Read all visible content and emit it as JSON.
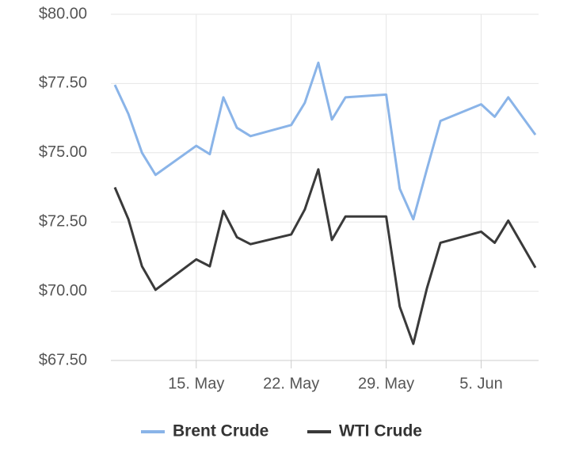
{
  "chart_data": {
    "type": "line",
    "x": [
      "05-09",
      "05-10",
      "05-11",
      "05-12",
      "05-15",
      "05-16",
      "05-17",
      "05-18",
      "05-19",
      "05-22",
      "05-23",
      "05-24",
      "05-25",
      "05-26",
      "05-29",
      "05-30",
      "05-31",
      "06-01",
      "06-02",
      "06-05",
      "06-06",
      "06-07",
      "06-09"
    ],
    "series": [
      {
        "name": "Brent Crude",
        "color": "#8ab4e8",
        "values": [
          77.45,
          76.4,
          75.0,
          74.2,
          75.25,
          74.95,
          77.0,
          75.9,
          75.6,
          76.0,
          76.8,
          78.25,
          76.2,
          77.0,
          77.1,
          73.7,
          72.6,
          74.4,
          76.15,
          76.75,
          76.3,
          77.0,
          75.65
        ]
      },
      {
        "name": "WTI Crude",
        "color": "#3a3a3a",
        "values": [
          73.75,
          72.6,
          70.9,
          70.05,
          71.15,
          70.9,
          72.9,
          71.95,
          71.7,
          72.05,
          72.95,
          74.4,
          71.85,
          72.7,
          72.7,
          69.45,
          68.1,
          70.1,
          71.75,
          72.15,
          71.75,
          72.55,
          70.85
        ]
      }
    ],
    "xlim": [
      "05-09",
      "06-09"
    ],
    "xticks": [
      {
        "value": "05-15",
        "label": "15. May"
      },
      {
        "value": "05-22",
        "label": "22. May"
      },
      {
        "value": "05-29",
        "label": "29. May"
      },
      {
        "value": "06-05",
        "label": "5. Jun"
      }
    ],
    "ylim": [
      67.5,
      80
    ],
    "yticks": [
      {
        "value": 67.5,
        "label": "$67.50"
      },
      {
        "value": 70,
        "label": "$70.00"
      },
      {
        "value": 72.5,
        "label": "$72.50"
      },
      {
        "value": 75,
        "label": "$75.00"
      },
      {
        "value": 77.5,
        "label": "$77.50"
      },
      {
        "value": 80,
        "label": "$80.00"
      }
    ],
    "grid": true,
    "legend": "bottom"
  }
}
